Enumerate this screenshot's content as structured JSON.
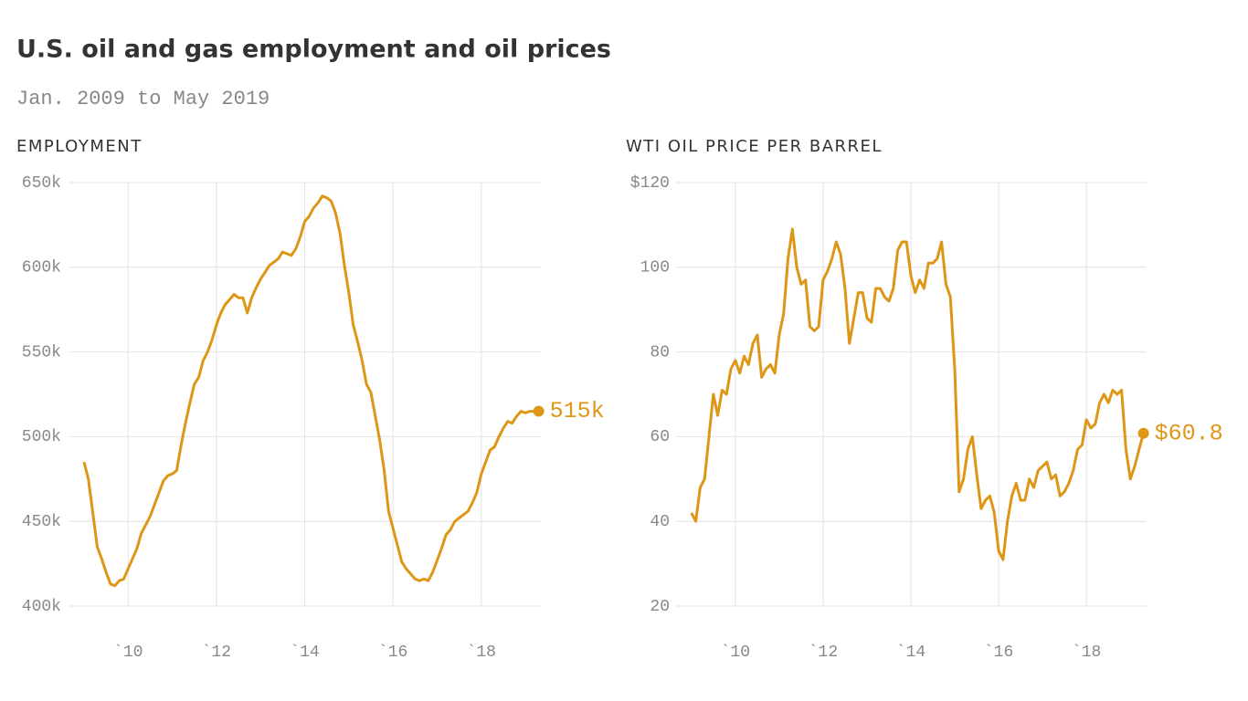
{
  "title": "U.S. oil and gas employment and oil prices",
  "subtitle": "Jan. 2009 to May 2019",
  "chart_data": [
    {
      "type": "line",
      "title": "EMPLOYMENT",
      "color": "#de9616",
      "grid": true,
      "x": [
        2009.0,
        2009.1,
        2009.2,
        2009.3,
        2009.4,
        2009.5,
        2009.6,
        2009.7,
        2009.8,
        2009.9,
        2010.0,
        2010.1,
        2010.2,
        2010.3,
        2010.4,
        2010.5,
        2010.6,
        2010.7,
        2010.8,
        2010.9,
        2011.0,
        2011.1,
        2011.2,
        2011.3,
        2011.4,
        2011.5,
        2011.6,
        2011.7,
        2011.8,
        2011.9,
        2012.0,
        2012.1,
        2012.2,
        2012.3,
        2012.4,
        2012.5,
        2012.6,
        2012.7,
        2012.8,
        2012.9,
        2013.0,
        2013.1,
        2013.2,
        2013.3,
        2013.4,
        2013.5,
        2013.6,
        2013.7,
        2013.8,
        2013.9,
        2014.0,
        2014.1,
        2014.2,
        2014.3,
        2014.4,
        2014.5,
        2014.6,
        2014.7,
        2014.8,
        2014.9,
        2015.0,
        2015.1,
        2015.2,
        2015.3,
        2015.4,
        2015.5,
        2015.6,
        2015.7,
        2015.8,
        2015.9,
        2016.0,
        2016.1,
        2016.2,
        2016.3,
        2016.4,
        2016.5,
        2016.6,
        2016.7,
        2016.8,
        2016.9,
        2017.0,
        2017.1,
        2017.2,
        2017.3,
        2017.4,
        2017.5,
        2017.6,
        2017.7,
        2017.8,
        2017.9,
        2018.0,
        2018.1,
        2018.2,
        2018.3,
        2018.4,
        2018.5,
        2018.6,
        2018.7,
        2018.8,
        2018.9,
        2019.0,
        2019.1,
        2019.2,
        2019.3
      ],
      "values": [
        485,
        475,
        455,
        435,
        428,
        420,
        413,
        412,
        415,
        416,
        422,
        428,
        434,
        443,
        448,
        453,
        460,
        467,
        474,
        477,
        478,
        480,
        495,
        508,
        520,
        531,
        535,
        545,
        550,
        557,
        566,
        573,
        578,
        581,
        584,
        582,
        582,
        573,
        582,
        588,
        593,
        597,
        601,
        603,
        605,
        609,
        608,
        607,
        611,
        618,
        627,
        630,
        635,
        638,
        642,
        641,
        639,
        632,
        620,
        601,
        585,
        566,
        556,
        545,
        531,
        526,
        512,
        498,
        480,
        456,
        446,
        436,
        426,
        422,
        419,
        416,
        415,
        416,
        415,
        420,
        427,
        434,
        442,
        445,
        450,
        452,
        454,
        456,
        461,
        467,
        478,
        485,
        492,
        494,
        500,
        505,
        509,
        508,
        512,
        515,
        514,
        515,
        515,
        515
      ],
      "end_label": "515k",
      "xlim": [
        2008.65,
        2019.35
      ],
      "xticks": [
        {
          "value": 2010,
          "label": "`10"
        },
        {
          "value": 2012,
          "label": "`12"
        },
        {
          "value": 2014,
          "label": "`14"
        },
        {
          "value": 2016,
          "label": "`16"
        },
        {
          "value": 2018,
          "label": "`18"
        }
      ],
      "ylim": [
        400,
        650
      ],
      "yticks": [
        {
          "value": 400,
          "label": "400k"
        },
        {
          "value": 450,
          "label": "450k"
        },
        {
          "value": 500,
          "label": "500k"
        },
        {
          "value": 550,
          "label": "550k"
        },
        {
          "value": 600,
          "label": "600k"
        },
        {
          "value": 650,
          "label": "650k"
        }
      ]
    },
    {
      "type": "line",
      "title": "WTI OIL PRICE PER BARREL",
      "color": "#de9616",
      "grid": true,
      "x": [
        2009.0,
        2009.1,
        2009.2,
        2009.3,
        2009.4,
        2009.5,
        2009.6,
        2009.7,
        2009.8,
        2009.9,
        2010.0,
        2010.1,
        2010.2,
        2010.3,
        2010.4,
        2010.5,
        2010.6,
        2010.7,
        2010.8,
        2010.9,
        2011.0,
        2011.1,
        2011.2,
        2011.3,
        2011.4,
        2011.5,
        2011.6,
        2011.7,
        2011.8,
        2011.9,
        2012.0,
        2012.1,
        2012.2,
        2012.3,
        2012.4,
        2012.5,
        2012.6,
        2012.7,
        2012.8,
        2012.9,
        2013.0,
        2013.1,
        2013.2,
        2013.3,
        2013.4,
        2013.5,
        2013.6,
        2013.7,
        2013.8,
        2013.9,
        2014.0,
        2014.1,
        2014.2,
        2014.3,
        2014.4,
        2014.5,
        2014.6,
        2014.7,
        2014.8,
        2014.9,
        2015.0,
        2015.1,
        2015.2,
        2015.3,
        2015.4,
        2015.5,
        2015.6,
        2015.7,
        2015.8,
        2015.9,
        2016.0,
        2016.1,
        2016.2,
        2016.3,
        2016.4,
        2016.5,
        2016.6,
        2016.7,
        2016.8,
        2016.9,
        2017.0,
        2017.1,
        2017.2,
        2017.3,
        2017.4,
        2017.5,
        2017.6,
        2017.7,
        2017.8,
        2017.9,
        2018.0,
        2018.1,
        2018.2,
        2018.3,
        2018.4,
        2018.5,
        2018.6,
        2018.7,
        2018.8,
        2018.9,
        2019.0,
        2019.1,
        2019.2,
        2019.3
      ],
      "values": [
        42,
        40,
        48,
        50,
        60,
        70,
        65,
        71,
        70,
        76,
        78,
        75,
        79,
        77,
        82,
        84,
        74,
        76,
        77,
        75,
        84,
        89,
        102,
        109,
        100,
        96,
        97,
        86,
        85,
        86,
        97,
        99,
        102,
        106,
        103,
        95,
        82,
        88,
        94,
        94,
        88,
        87,
        95,
        95,
        93,
        92,
        95,
        104,
        106,
        106,
        98,
        94,
        97,
        95,
        101,
        101,
        102,
        106,
        96,
        93,
        76,
        47,
        50,
        57,
        60,
        51,
        43,
        45,
        46,
        42,
        33,
        31,
        40,
        46,
        49,
        45,
        45,
        50,
        48,
        52,
        53,
        54,
        50,
        51,
        46,
        47,
        49,
        52,
        57,
        58,
        64,
        62,
        63,
        68,
        70,
        68,
        71,
        70,
        71,
        57,
        50,
        53,
        57,
        60.8
      ],
      "end_label": "$60.8",
      "xlim": [
        2008.65,
        2019.35
      ],
      "xticks": [
        {
          "value": 2010,
          "label": "`10"
        },
        {
          "value": 2012,
          "label": "`12"
        },
        {
          "value": 2014,
          "label": "`14"
        },
        {
          "value": 2016,
          "label": "`16"
        },
        {
          "value": 2018,
          "label": "`18"
        }
      ],
      "ylim": [
        20,
        120
      ],
      "yticks": [
        20,
        40,
        60,
        80,
        100,
        {
          "value": 120,
          "label": "$120"
        }
      ]
    }
  ]
}
